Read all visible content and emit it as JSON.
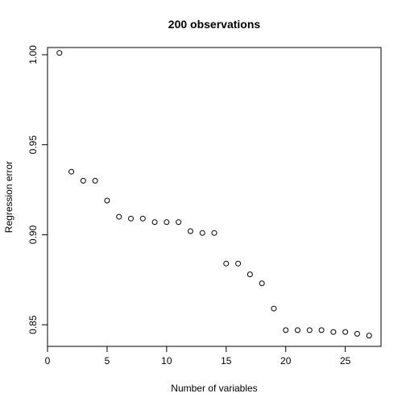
{
  "chart_data": {
    "type": "scatter",
    "title": "200 observations",
    "xlabel": "Number of variables",
    "ylabel": "Regression error",
    "xlim": [
      0,
      28
    ],
    "ylim": [
      0.838,
      1.004
    ],
    "x_ticks": [
      0,
      5,
      10,
      15,
      20,
      25
    ],
    "y_ticks": [
      0.85,
      0.9,
      0.95,
      1.0
    ],
    "x_tick_labels": [
      "0",
      "5",
      "10",
      "15",
      "20",
      "25"
    ],
    "y_tick_labels": [
      "0.85",
      "0.90",
      "0.95",
      "1.00"
    ],
    "grid": false,
    "marker": "open-circle",
    "x": [
      1,
      2,
      3,
      4,
      5,
      6,
      7,
      8,
      9,
      10,
      11,
      12,
      13,
      14,
      15,
      16,
      17,
      18,
      19,
      20,
      21,
      22,
      23,
      24,
      25,
      26,
      27
    ],
    "y": [
      1.001,
      0.935,
      0.93,
      0.93,
      0.919,
      0.91,
      0.909,
      0.909,
      0.907,
      0.907,
      0.907,
      0.902,
      0.901,
      0.901,
      0.884,
      0.884,
      0.878,
      0.873,
      0.859,
      0.847,
      0.847,
      0.847,
      0.847,
      0.846,
      0.846,
      0.845,
      0.844
    ]
  },
  "colors": {
    "points": "#000000",
    "axes": "#000000",
    "background": "#ffffff"
  }
}
